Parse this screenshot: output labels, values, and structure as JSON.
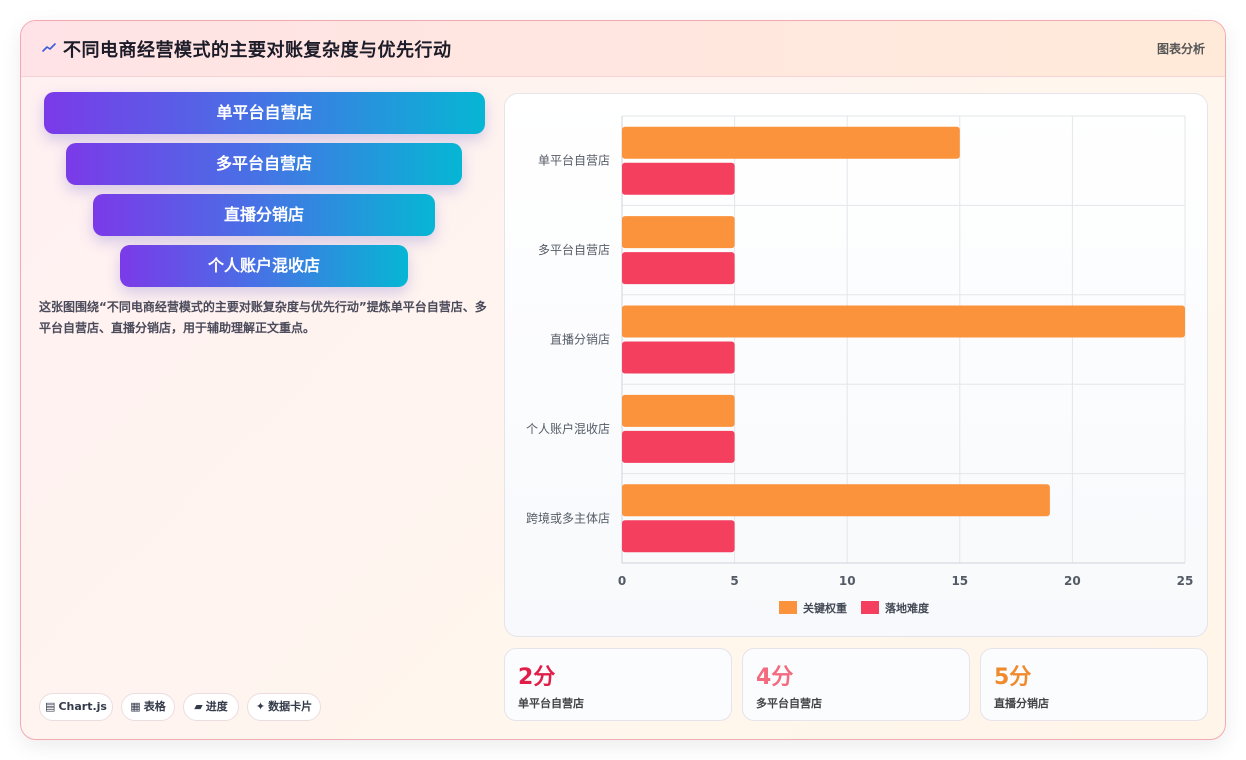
{
  "header": {
    "icon": "trend-icon",
    "title": "不同电商经营模式的主要对账复杂度与优先行动",
    "tag": "图表分析"
  },
  "funnel": {
    "items": [
      "单平台自营店",
      "多平台自营店",
      "直播分销店",
      "个人账户混收店"
    ]
  },
  "description": "这张图围绕“不同电商经营模式的主要对账复杂度与优先行动”提炼单平台自营店、多平台自营店、直播分销店，用于辅助理解正文重点。",
  "tags": [
    {
      "icon": "chart-icon",
      "glyph": "▤",
      "label": "Chart.js"
    },
    {
      "icon": "table-icon",
      "glyph": "▦",
      "label": "表格"
    },
    {
      "icon": "progress-icon",
      "glyph": "▰",
      "label": "进度"
    },
    {
      "icon": "data-card-icon",
      "glyph": "✦",
      "label": "数据卡片"
    }
  ],
  "chart_data": {
    "type": "bar",
    "orientation": "horizontal",
    "categories": [
      "单平台自营店",
      "多平台自营店",
      "直播分销店",
      "个人账户混收店",
      "跨境或多主体店"
    ],
    "series": [
      {
        "name": "关键权重",
        "values": [
          15,
          5,
          25,
          5,
          19
        ],
        "color": "#fb923c"
      },
      {
        "name": "落地难度",
        "values": [
          5,
          5,
          5,
          5,
          5
        ],
        "color": "#f43f5e"
      }
    ],
    "xlim": [
      0,
      25
    ],
    "xticks": [
      0,
      5,
      10,
      15,
      20,
      25
    ],
    "grid": true,
    "legend": "bottom"
  },
  "stats": [
    {
      "value": "2分",
      "label": "单平台自营店",
      "color": "#e11d48"
    },
    {
      "value": "4分",
      "label": "多平台自营店",
      "color": "#f46a7e"
    },
    {
      "value": "5分",
      "label": "直播分销店",
      "color": "#f08a2e"
    }
  ]
}
